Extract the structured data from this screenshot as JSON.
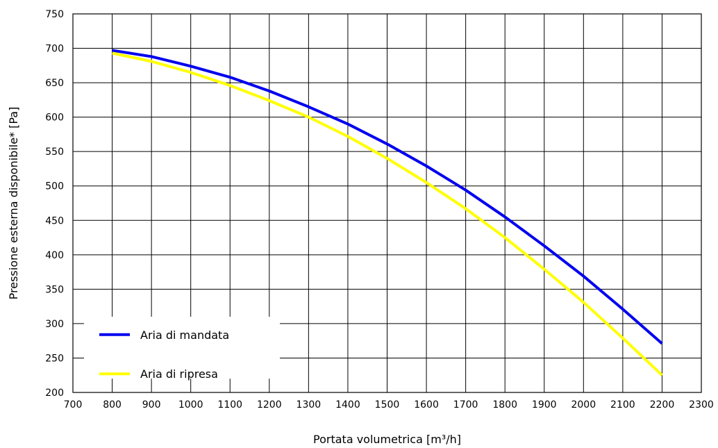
{
  "chart_data": {
    "type": "line",
    "xlabel": "Portata volumetrica [m³/h]",
    "ylabel": "Pressione esterna disponibile* [Pa]",
    "xlim": [
      700,
      2300
    ],
    "ylim": [
      200,
      750
    ],
    "xticks": [
      700,
      800,
      900,
      1000,
      1100,
      1200,
      1300,
      1400,
      1500,
      1600,
      1700,
      1800,
      1900,
      2000,
      2100,
      2200,
      2300
    ],
    "yticks": [
      200,
      250,
      300,
      350,
      400,
      450,
      500,
      550,
      600,
      650,
      700,
      750
    ],
    "grid": true,
    "legend_position": "bottom-left",
    "series": [
      {
        "name": "Aria di mandata",
        "color": "#0000ee",
        "x": [
          800,
          900,
          1000,
          1100,
          1200,
          1300,
          1400,
          1500,
          1600,
          1700,
          1800,
          1900,
          2000,
          2100,
          2200
        ],
        "y": [
          697,
          688,
          674,
          658,
          638,
          615,
          590,
          561,
          529,
          494,
          455,
          413,
          369,
          321,
          271
        ]
      },
      {
        "name": "Aria di ripresa",
        "color": "#ffff00",
        "x": [
          800,
          900,
          1000,
          1100,
          1200,
          1300,
          1400,
          1500,
          1600,
          1700,
          1800,
          1900,
          2000,
          2100,
          2200
        ],
        "y": [
          693,
          681,
          665,
          646,
          624,
          600,
          572,
          540,
          505,
          467,
          425,
          379,
          331,
          279,
          225
        ]
      }
    ]
  }
}
